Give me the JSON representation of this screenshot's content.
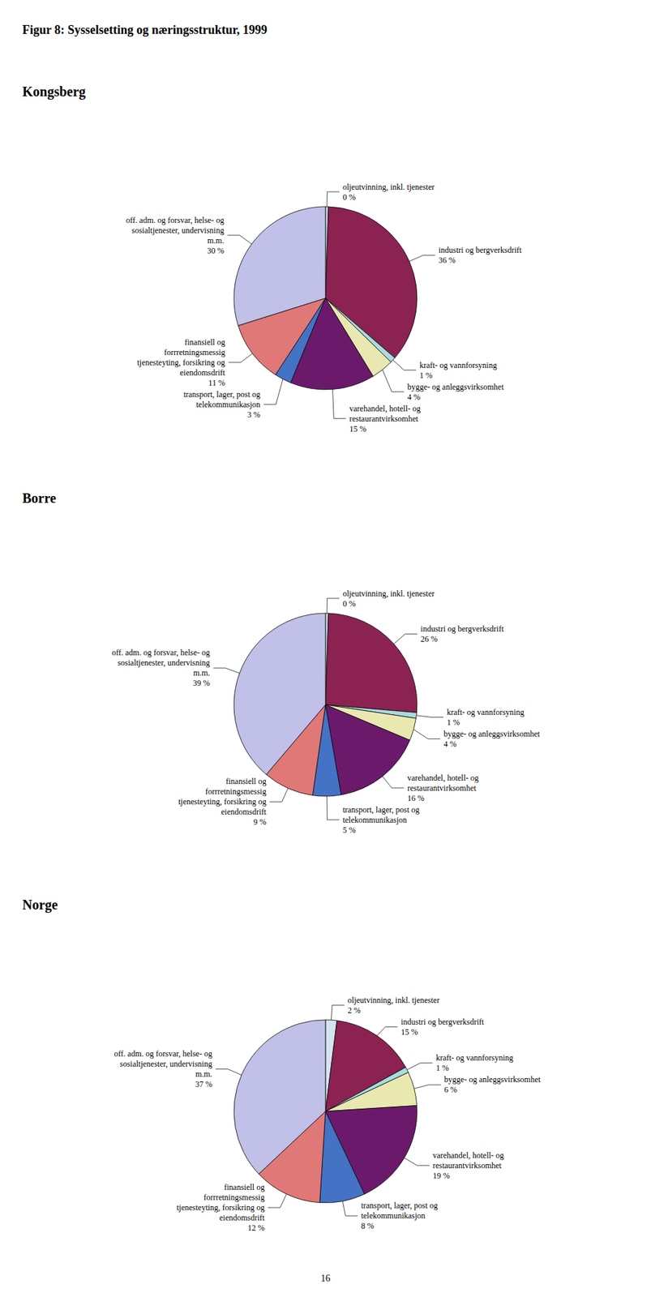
{
  "title": "Figur 8: Sysselsetting og næringsstruktur, 1999",
  "annotations": [
    "16"
  ],
  "chart_data": [
    {
      "type": "pie",
      "title": "Kongsberg",
      "categories": [
        "oljeutvinning, inkl. tjenester",
        "industri og bergverksdrift",
        "kraft- og vannforsyning",
        "bygge- og anleggsvirksomhet",
        "varehandel, hotell- og\nrestaurantvirksomhet",
        "transport, lager, post og\ntelekommunikasjon",
        "finansiell og\nforrretningsmessig\ntjenesteyting, forsikring og\neiendomsdrift",
        "off. adm. og forsvar, helse- og\nsosialtjenester, undervisning\nm.m."
      ],
      "values": [
        0.5,
        36,
        1,
        4,
        15,
        3,
        11,
        30
      ],
      "value_labels": [
        "0 %",
        "36 %",
        "1 %",
        "4 %",
        "15 %",
        "3 %",
        "11 %",
        "30 %"
      ],
      "colors": [
        "#d4e4f0",
        "#8b2252",
        "#a8dce0",
        "#e8e8b0",
        "#6b1a6b",
        "#4472c4",
        "#e07878",
        "#c0c0e8"
      ],
      "data_labels": true
    },
    {
      "type": "pie",
      "title": "Borre",
      "categories": [
        "oljeutvinning, inkl. tjenester",
        "industri og bergverksdrift",
        "kraft- og vannforsyning",
        "bygge- og anleggsvirksomhet",
        "varehandel, hotell- og\nrestaurantvirksomhet",
        "transport, lager, post og\ntelekommunikasjon",
        "finansiell og\nforrretningsmessig\ntjenesteyting, forsikring og\neiendomsdrift",
        "off. adm. og forsvar, helse- og\nsosialtjenester, undervisning\nm.m."
      ],
      "values": [
        0.5,
        26,
        1,
        4,
        16,
        5,
        9,
        39
      ],
      "value_labels": [
        "0 %",
        "26 %",
        "1 %",
        "4 %",
        "16 %",
        "5 %",
        "9 %",
        "39 %"
      ],
      "colors": [
        "#d4e4f0",
        "#8b2252",
        "#a8dce0",
        "#e8e8b0",
        "#6b1a6b",
        "#4472c4",
        "#e07878",
        "#c0c0e8"
      ],
      "data_labels": true
    },
    {
      "type": "pie",
      "title": "Norge",
      "categories": [
        "oljeutvinning, inkl. tjenester",
        "industri og bergverksdrift",
        "kraft- og vannforsyning",
        "bygge- og anleggsvirksomhet",
        "varehandel, hotell- og\nrestaurantvirksomhet",
        "transport, lager, post og\ntelekommunikasjon",
        "finansiell og\nforrretningsmessig\ntjenesteyting, forsikring og\neiendomsdrift",
        "off. adm. og forsvar, helse- og\nsosialtjenester, undervisning\nm.m."
      ],
      "values": [
        2,
        15,
        1,
        6,
        19,
        8,
        12,
        37
      ],
      "value_labels": [
        "2 %",
        "15 %",
        "1 %",
        "6 %",
        "19 %",
        "8 %",
        "12 %",
        "37 %"
      ],
      "colors": [
        "#d4e4f0",
        "#8b2252",
        "#a8dce0",
        "#e8e8b0",
        "#6b1a6b",
        "#4472c4",
        "#e07878",
        "#c0c0e8"
      ],
      "data_labels": true
    }
  ]
}
